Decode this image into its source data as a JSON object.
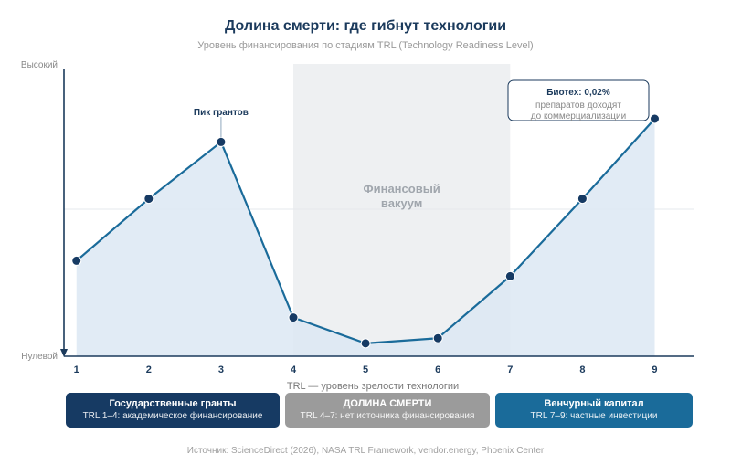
{
  "chart_data": {
    "type": "area",
    "title": "Долина смерти: где гибнут технологии",
    "subtitle": "Уровень финансирования по стадиям TRL (Technology Readiness Level)",
    "xlabel": "TRL — уровень зрелости технологии",
    "ylabel_top": "Высокий",
    "ylabel_bottom": "Нулевой",
    "categories": [
      "1",
      "2",
      "3",
      "4",
      "5",
      "6",
      "7",
      "8",
      "9"
    ],
    "x": [
      1,
      2,
      3,
      4,
      5,
      6,
      7,
      8,
      9
    ],
    "values": [
      0.37,
      0.61,
      0.83,
      0.15,
      0.05,
      0.07,
      0.31,
      0.61,
      0.92
    ],
    "ylim": [
      0,
      1.15
    ],
    "xlim": [
      0.7,
      9.55
    ],
    "grid": false,
    "peak_annotation": {
      "x": 3,
      "label": "Пик грантов"
    },
    "vacuum_zone": {
      "from": 4,
      "to": 7,
      "label_line1": "Финансовый",
      "label_line2": "вакуум"
    },
    "callout": {
      "x": 9,
      "head": "Биотех: 0,02%",
      "line1": "препаратов доходят",
      "line2": "до коммерциализации"
    },
    "colors": {
      "line": "#1a6b9a",
      "fill": "#dce7f3",
      "point": "#163a63",
      "vacuum": "#eef0f2",
      "axis": "#1b3a5c"
    }
  },
  "zones": [
    {
      "title": "Государственные гранты",
      "desc": "TRL 1–4: академическое финансирование",
      "color": "#163a63"
    },
    {
      "title": "ДОЛИНА СМЕРТИ",
      "desc": "TRL 4–7: нет источника финансирования",
      "color": "#9b9b9b"
    },
    {
      "title": "Венчурный капитал",
      "desc": "TRL 7–9: частные инвестиции",
      "color": "#1a6b9a"
    }
  ],
  "source": "Источник: ScienceDirect (2026), NASA TRL Framework, vendor.energy, Phoenix Center"
}
